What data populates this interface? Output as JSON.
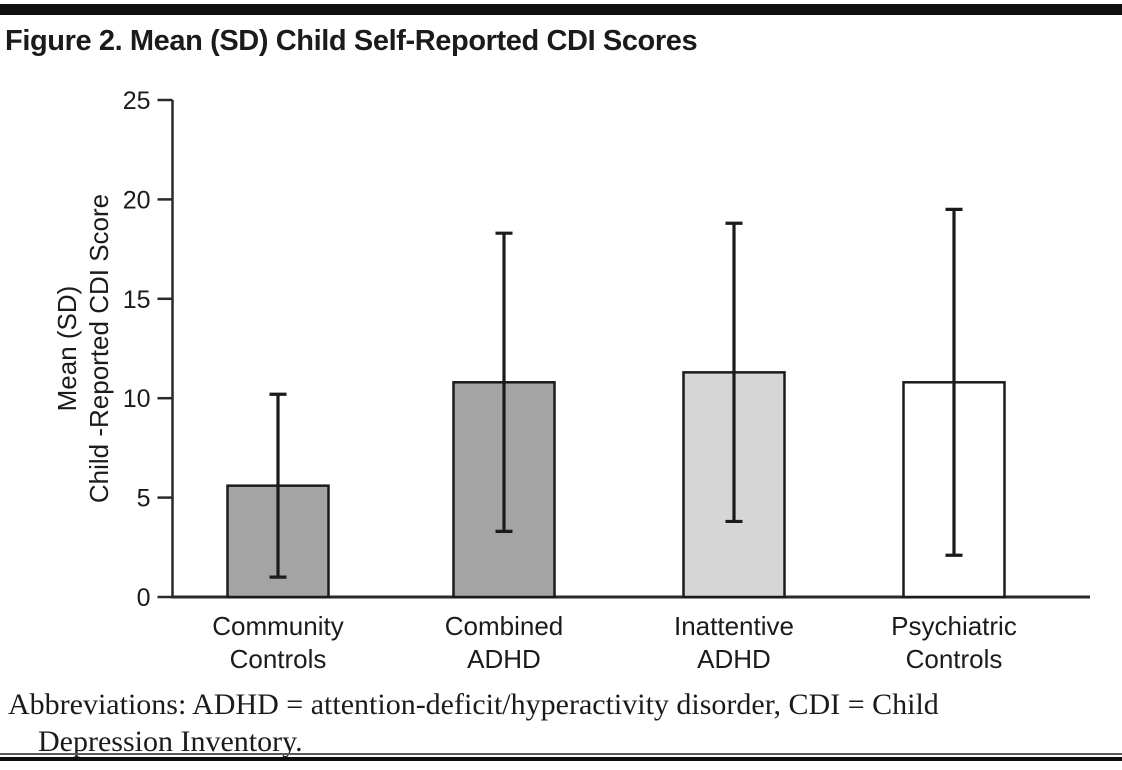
{
  "figure": {
    "title": "Figure 2. Mean (SD) Child Self-Reported CDI Scores",
    "footnote_line1": "Abbreviations: ADHD = attention-deficit/hyperactivity disorder, CDI = Child",
    "footnote_line2": "Depression Inventory."
  },
  "chart_data": {
    "type": "bar",
    "title": "Figure 2. Mean (SD) Child Self-Reported CDI Scores",
    "categories": [
      "Community Controls",
      "Combined ADHD",
      "Inattentive ADHD",
      "Psychiatric Controls"
    ],
    "categories_wrapped": [
      [
        "Community",
        "Controls"
      ],
      [
        "Combined",
        "ADHD"
      ],
      [
        "Inattentive",
        "ADHD"
      ],
      [
        "Psychiatric",
        "Controls"
      ]
    ],
    "series": [
      {
        "name": "Mean (SD) Child Self-Reported CDI Score",
        "values": [
          5.6,
          10.8,
          11.3,
          10.8
        ],
        "sd": [
          4.6,
          7.5,
          7.5,
          8.7
        ]
      }
    ],
    "xlabel": "",
    "ylabel_lines": [
      "Mean (SD)",
      "Child -Reported CDI Score"
    ],
    "yticks": [
      0,
      5,
      10,
      15,
      20,
      25
    ],
    "ylim": [
      0,
      25
    ],
    "grid": false,
    "legend": false,
    "error_bars": "plus-minus-sd",
    "bar_fills": [
      "#a4a4a4",
      "#a4a4a4",
      "#d6d6d6",
      "#ffffff"
    ],
    "bar_edge_color": "#1b1b1b",
    "error_bar_color": "#1b1b1b",
    "axis_color": "#2a2a2a",
    "text_color": "#1b1b1b"
  }
}
